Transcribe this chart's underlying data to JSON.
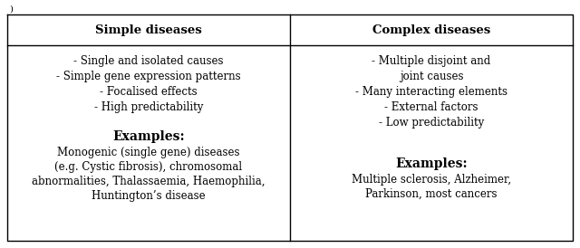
{
  "title_left": "Simple diseases",
  "title_right": "Complex diseases",
  "left_bullets": [
    "- Single and isolated causes",
    "- Simple gene expression patterns",
    "- Focalised effects",
    "- High predictability"
  ],
  "right_bullets_line1": "- Multiple disjoint and",
  "right_bullets_line2": "joint causes",
  "right_bullets_rest": [
    "- Many interacting elements",
    "- External factors",
    "- Low predictability"
  ],
  "left_examples_label": "Examples:",
  "left_examples_text": "Monogenic (single gene) diseases\n(e.g. Cystic fibrosis), chromosomal\nabnormalities, Thalassaemia, Haemophilia,\nHuntington’s disease",
  "right_examples_label": "Examples:",
  "right_examples_text": "Multiple sclerosis, Alzheimer,\nParkinson, most cancers",
  "top_label": ")",
  "bg_color": "#ffffff",
  "text_color": "#000000",
  "border_color": "#000000",
  "font_size": 8.5,
  "title_font_size": 9.5,
  "examples_label_font_size": 10.0
}
